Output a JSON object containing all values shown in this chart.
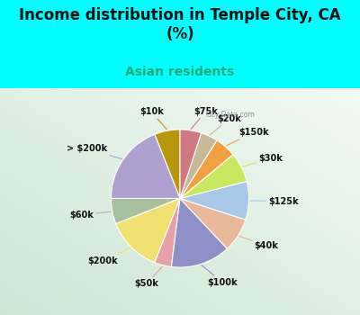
{
  "title": "Income distribution in Temple City, CA\n(%)",
  "subtitle": "Asian residents",
  "background_top": "#00FFFF",
  "background_chart_tl": "#e8f8f0",
  "background_chart_br": "#c8f0e8",
  "labels": [
    "$10k",
    "> $200k",
    "$60k",
    "$200k",
    "$50k",
    "$100k",
    "$40k",
    "$125k",
    "$30k",
    "$150k",
    "$20k",
    "$75k"
  ],
  "values": [
    6,
    19,
    6,
    13,
    4,
    14,
    8,
    9,
    7,
    5,
    4,
    5
  ],
  "colors": [
    "#b8960a",
    "#b0a0d0",
    "#a8c0a0",
    "#f0e070",
    "#e8a0a8",
    "#9090c8",
    "#e8b898",
    "#a8c8e8",
    "#c8e860",
    "#f0a040",
    "#c8b898",
    "#d07880"
  ],
  "startangle": 90,
  "label_fontsize": 7,
  "title_fontsize": 12,
  "subtitle_fontsize": 10,
  "subtitle_color": "#28a878"
}
